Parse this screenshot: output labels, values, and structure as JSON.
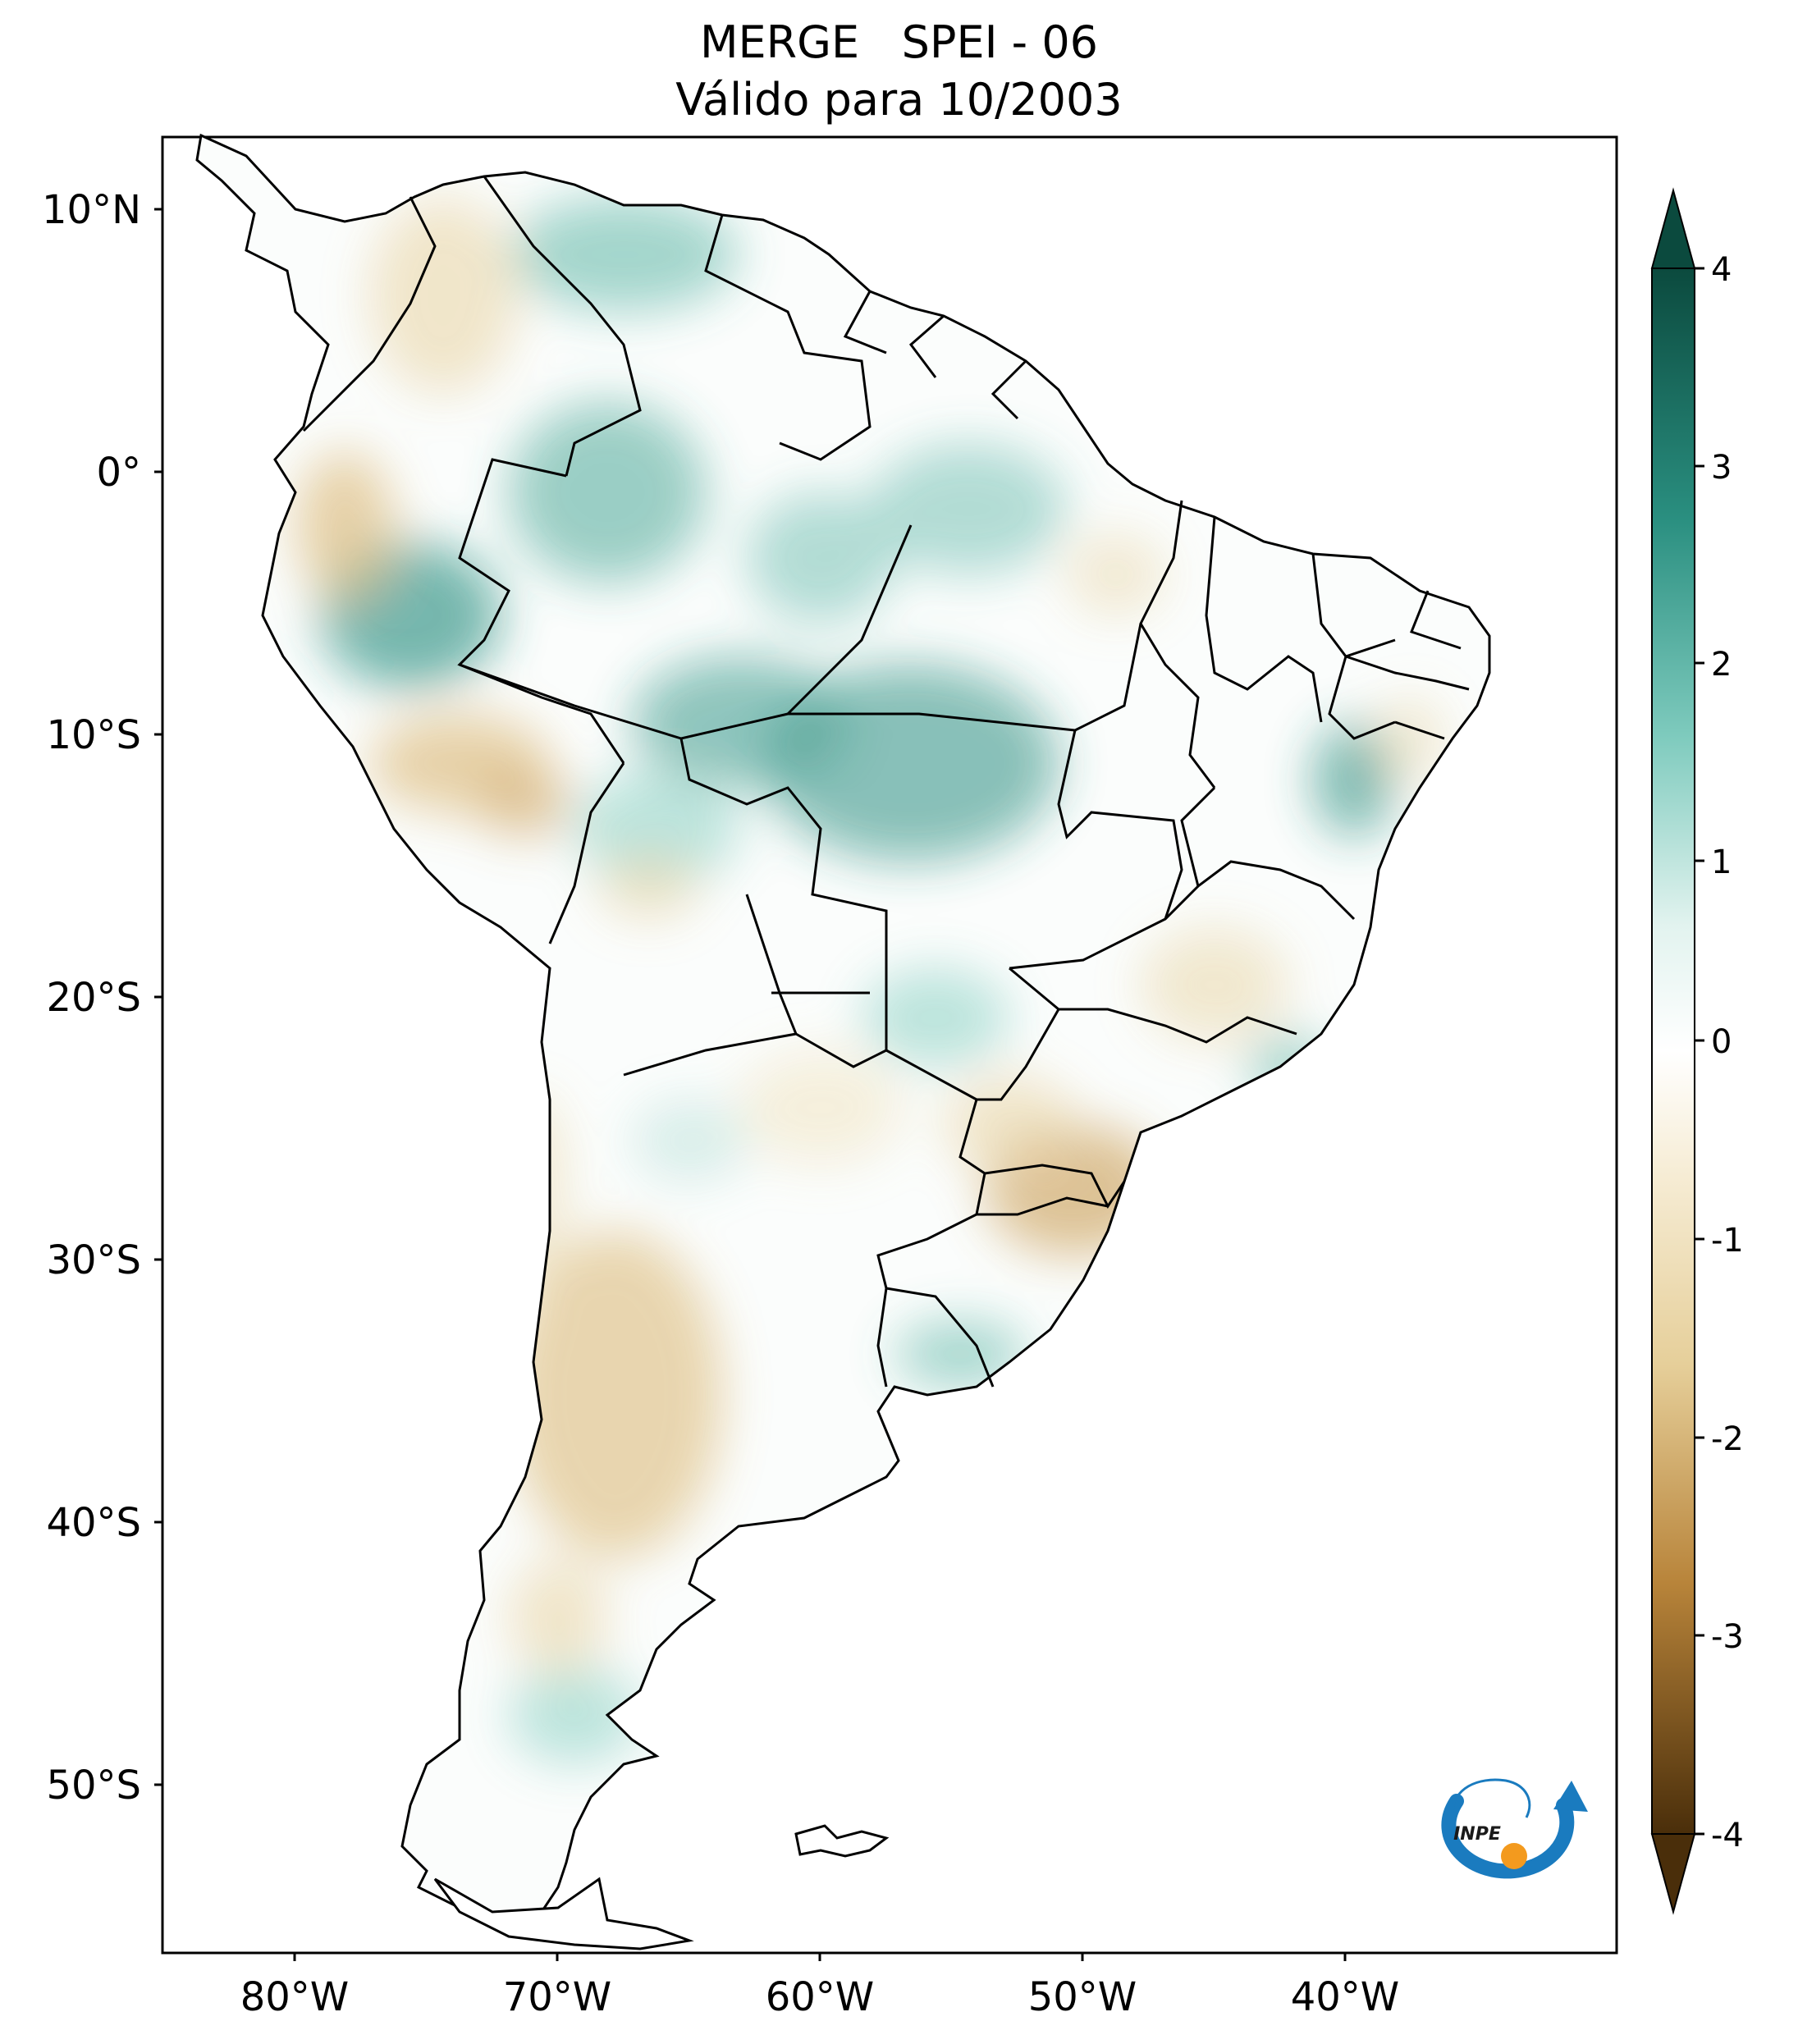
{
  "title": {
    "line1": "MERGE   SPEI - 06",
    "line2": "Válido para 10/2003"
  },
  "axes": {
    "lat_labels": [
      "10°N",
      "0°",
      "10°S",
      "20°S",
      "30°S",
      "40°S",
      "50°S"
    ],
    "lon_labels": [
      "80°W",
      "70°W",
      "60°W",
      "50°W",
      "40°W"
    ]
  },
  "colorbar": {
    "labels": [
      "4",
      "3",
      "2",
      "1",
      "0",
      "-1",
      "-2",
      "-3",
      "-4"
    ],
    "colors": {
      "max": "#0b4a3e",
      "high": "#2a8f80",
      "mid_high": "#7fcbbe",
      "neutral": "#ffffff",
      "mid_low": "#e6cf9a",
      "low": "#b8843a",
      "min": "#4a2e0a"
    }
  },
  "map": {
    "colors": {
      "wet": "#4faf9f",
      "dry": "#d8b36e",
      "border": "#000000"
    }
  },
  "logo": {
    "text": "INPE",
    "colors": {
      "arc": "#1a7bbf",
      "dot": "#f39a1e"
    }
  }
}
